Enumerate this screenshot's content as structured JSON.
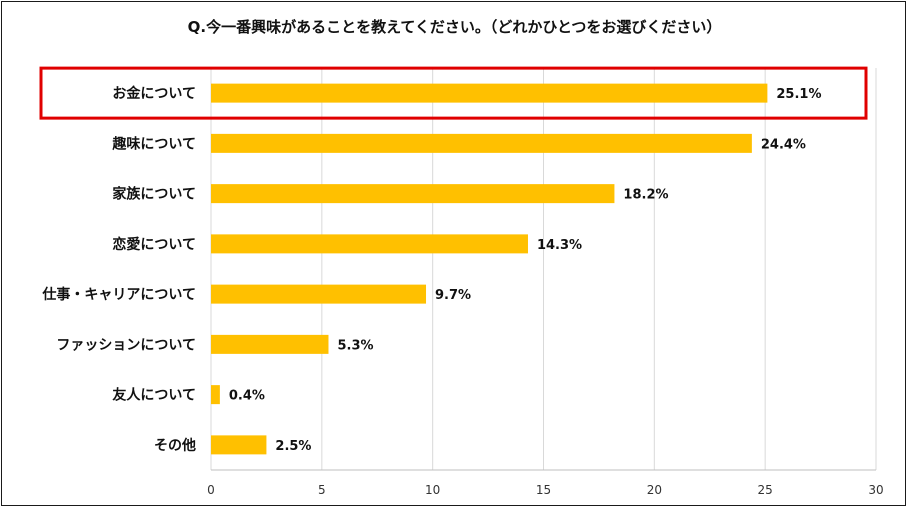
{
  "chart_data": {
    "type": "bar",
    "orientation": "horizontal",
    "title": "Q.今一番興味があることを教えてください。（どれかひとつをお選びください）",
    "categories": [
      "お金について",
      "趣味について",
      "家族について",
      "恋愛について",
      "仕事・キャリアについて",
      "ファッションについて",
      "友人について",
      "その他"
    ],
    "values": [
      25.1,
      24.4,
      18.2,
      14.3,
      9.7,
      5.3,
      0.4,
      2.5
    ],
    "value_labels": [
      "25.1%",
      "24.4%",
      "18.2%",
      "14.3%",
      "9.7%",
      "5.3%",
      "0.4%",
      "2.5%"
    ],
    "xlim": [
      0,
      30
    ],
    "xticks": [
      "0",
      "5",
      "10",
      "15",
      "20",
      "25",
      "30"
    ],
    "grid": "vertical",
    "bar_color": "#FFC000",
    "highlight_category": "お金について",
    "highlight_color": "#E00000"
  }
}
